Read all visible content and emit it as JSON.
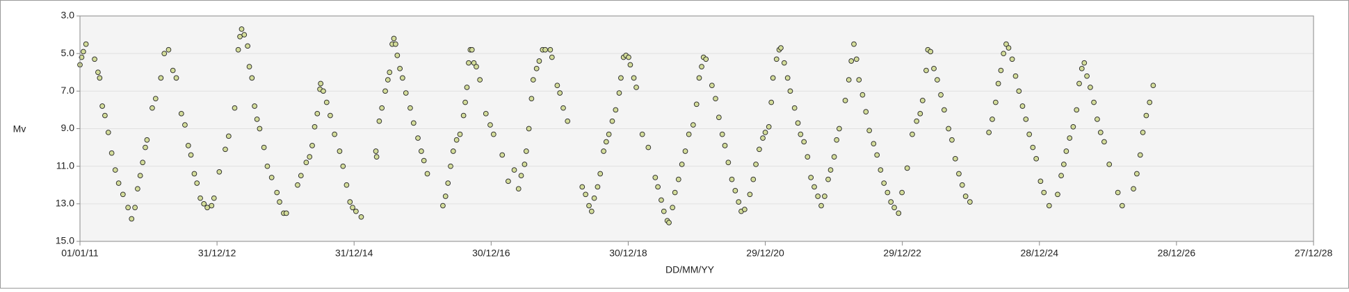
{
  "chart_data": {
    "type": "scatter",
    "x_label": "DD/MM/YY",
    "y_label": "Mv",
    "xlim": [
      40544,
      47114
    ],
    "xticks": [
      {
        "value": 40544,
        "label": "01/01/11"
      },
      {
        "value": 41274,
        "label": "31/12/12"
      },
      {
        "value": 42004,
        "label": "31/12/14"
      },
      {
        "value": 42734,
        "label": "30/12/16"
      },
      {
        "value": 43464,
        "label": "30/12/18"
      },
      {
        "value": 44194,
        "label": "29/12/20"
      },
      {
        "value": 44924,
        "label": "29/12/22"
      },
      {
        "value": 45654,
        "label": "28/12/24"
      },
      {
        "value": 46384,
        "label": "28/12/26"
      },
      {
        "value": 47114,
        "label": "27/12/28"
      }
    ],
    "ylim": [
      3,
      15
    ],
    "y_inverted": true,
    "yticks": [
      {
        "value": 3,
        "label": "3.0"
      },
      {
        "value": 5,
        "label": "5.0"
      },
      {
        "value": 7,
        "label": "7.0"
      },
      {
        "value": 9,
        "label": "9.0"
      },
      {
        "value": 11,
        "label": "11.0"
      },
      {
        "value": 13,
        "label": "13.0"
      },
      {
        "value": 15,
        "label": "15.0"
      }
    ],
    "grid": true,
    "color": "#d3dc9a",
    "x": [
      40544,
      40553,
      40562,
      40576,
      40622,
      40640,
      40649,
      40663,
      40677,
      40695,
      40713,
      40732,
      40750,
      40773,
      40800,
      40819,
      40837,
      40851,
      40865,
      40878,
      40892,
      40901,
      40929,
      40947,
      40975,
      40993,
      41016,
      41039,
      41057,
      41084,
      41103,
      41121,
      41135,
      41153,
      41167,
      41185,
      41204,
      41222,
      41245,
      41258,
      41286,
      41318,
      41336,
      41368,
      41387,
      41396,
      41405,
      41419,
      41437,
      41446,
      41460,
      41474,
      41487,
      41501,
      41524,
      41542,
      41565,
      41593,
      41607,
      41629,
      41643,
      41703,
      41721,
      41749,
      41767,
      41781,
      41794,
      41808,
      41822,
      41826,
      41840,
      41858,
      41877,
      41900,
      41927,
      41945,
      41964,
      41982,
      41996,
      42014,
      42042,
      42120,
      42124,
      42138,
      42152,
      42170,
      42184,
      42193,
      42207,
      42216,
      42225,
      42234,
      42248,
      42262,
      42280,
      42303,
      42321,
      42344,
      42362,
      42376,
      42394,
      42477,
      42491,
      42504,
      42518,
      42532,
      42550,
      42568,
      42587,
      42596,
      42605,
      42614,
      42623,
      42632,
      42642,
      42655,
      42674,
      42706,
      42729,
      42747,
      42793,
      42825,
      42857,
      42880,
      42894,
      42912,
      42921,
      42935,
      42949,
      42958,
      42976,
      42990,
      43008,
      43022,
      43049,
      43058,
      43086,
      43100,
      43118,
      43141,
      43219,
      43237,
      43255,
      43269,
      43283,
      43301,
      43315,
      43333,
      43347,
      43361,
      43379,
      43397,
      43416,
      43425,
      43439,
      43452,
      43466,
      43475,
      43494,
      43507,
      43539,
      43571,
      43608,
      43622,
      43640,
      43654,
      43672,
      43681,
      43700,
      43713,
      43732,
      43750,
      43768,
      43787,
      43810,
      43828,
      43842,
      43855,
      43865,
      43878,
      43910,
      43929,
      43947,
      43965,
      43979,
      43997,
      44016,
      44034,
      44052,
      44066,
      44084,
      44112,
      44130,
      44144,
      44162,
      44181,
      44194,
      44213,
      44226,
      44235,
      44254,
      44268,
      44277,
      44295,
      44313,
      44327,
      44350,
      44368,
      44382,
      44400,
      44419,
      44437,
      44455,
      44474,
      44492,
      44510,
      44529,
      44542,
      44561,
      44574,
      44588,
      44620,
      44639,
      44652,
      44666,
      44680,
      44693,
      44712,
      44730,
      44748,
      44771,
      44789,
      44808,
      44826,
      44845,
      44863,
      44881,
      44904,
      44922,
      44950,
      44977,
      45000,
      45019,
      45032,
      45051,
      45060,
      45074,
      45092,
      45110,
      45129,
      45147,
      45170,
      45188,
      45206,
      45225,
      45243,
      45261,
      45284,
      45385,
      45403,
      45421,
      45435,
      45449,
      45463,
      45477,
      45490,
      45509,
      45527,
      45545,
      45564,
      45582,
      45600,
      45619,
      45637,
      45660,
      45678,
      45706,
      45751,
      45770,
      45784,
      45797,
      45815,
      45834,
      45852,
      45866,
      45880,
      45893,
      45907,
      45925,
      45944,
      45962,
      45980,
      45999,
      46026,
      46072,
      46095,
      46155,
      46173,
      46191,
      46205,
      46223,
      46241,
      46260
    ],
    "values": [
      5.6,
      5.2,
      4.9,
      4.5,
      5.3,
      6.0,
      6.3,
      7.8,
      8.3,
      9.2,
      10.3,
      11.2,
      11.9,
      12.5,
      13.2,
      13.8,
      13.2,
      12.2,
      11.5,
      10.8,
      10.0,
      9.6,
      7.9,
      7.4,
      6.3,
      5.0,
      4.8,
      5.9,
      6.3,
      8.2,
      8.8,
      9.9,
      10.4,
      11.4,
      11.9,
      12.7,
      13.0,
      13.2,
      13.1,
      12.7,
      11.3,
      10.1,
      9.4,
      7.9,
      4.8,
      4.1,
      3.7,
      4.0,
      4.6,
      5.7,
      6.3,
      7.8,
      8.5,
      9.0,
      10.0,
      11.0,
      11.6,
      12.4,
      12.9,
      13.5,
      13.5,
      12.0,
      11.5,
      10.8,
      10.5,
      9.9,
      8.9,
      8.2,
      6.9,
      6.6,
      7.0,
      7.6,
      8.3,
      9.3,
      10.2,
      11.0,
      12.0,
      12.9,
      13.2,
      13.4,
      13.7,
      10.2,
      10.5,
      8.6,
      7.9,
      7.0,
      6.4,
      6.0,
      4.5,
      4.2,
      4.5,
      5.1,
      5.8,
      6.3,
      7.1,
      7.9,
      8.7,
      9.5,
      10.2,
      10.7,
      11.4,
      13.1,
      12.6,
      11.9,
      11.0,
      10.2,
      9.6,
      9.3,
      8.3,
      7.6,
      6.8,
      5.5,
      4.8,
      4.8,
      5.5,
      5.7,
      6.4,
      8.2,
      8.8,
      9.3,
      10.4,
      11.8,
      11.2,
      12.2,
      11.5,
      10.9,
      10.2,
      9.0,
      7.4,
      6.4,
      5.8,
      5.4,
      4.8,
      4.8,
      4.8,
      5.2,
      6.7,
      7.1,
      7.9,
      8.6,
      12.1,
      12.5,
      13.1,
      13.4,
      12.7,
      12.1,
      11.4,
      10.2,
      9.7,
      9.3,
      8.6,
      8.0,
      7.1,
      6.3,
      5.2,
      5.1,
      5.2,
      5.6,
      6.3,
      6.8,
      9.3,
      10.0,
      11.6,
      12.1,
      12.8,
      13.4,
      13.9,
      14.0,
      13.2,
      12.4,
      11.7,
      10.9,
      10.2,
      9.3,
      8.8,
      7.7,
      6.3,
      5.7,
      5.2,
      5.3,
      6.7,
      7.4,
      8.4,
      9.3,
      9.9,
      10.8,
      11.7,
      12.3,
      12.9,
      13.4,
      13.3,
      12.5,
      11.7,
      10.9,
      10.1,
      9.5,
      9.2,
      8.9,
      7.6,
      6.3,
      5.3,
      4.8,
      4.7,
      5.5,
      6.3,
      7.0,
      7.9,
      8.7,
      9.3,
      9.7,
      10.5,
      11.6,
      12.1,
      12.6,
      13.1,
      12.6,
      11.7,
      11.2,
      10.5,
      9.6,
      9.0,
      7.5,
      6.4,
      5.4,
      4.5,
      5.3,
      6.4,
      7.2,
      8.1,
      9.1,
      9.8,
      10.4,
      11.2,
      11.9,
      12.4,
      12.9,
      13.2,
      13.5,
      12.4,
      11.1,
      9.3,
      8.6,
      8.2,
      7.5,
      5.9,
      4.8,
      4.9,
      5.8,
      6.4,
      7.2,
      8.0,
      9.0,
      9.6,
      10.6,
      11.4,
      12.0,
      12.6,
      12.9,
      9.2,
      8.5,
      7.6,
      6.6,
      5.9,
      5.0,
      4.5,
      4.7,
      5.3,
      6.2,
      7.0,
      7.8,
      8.5,
      9.3,
      10.0,
      10.6,
      11.8,
      12.4,
      13.1,
      12.5,
      11.5,
      10.9,
      10.2,
      9.5,
      8.9,
      8.0,
      6.6,
      5.8,
      5.5,
      6.2,
      6.8,
      7.6,
      8.5,
      9.2,
      9.7,
      10.9,
      12.4,
      13.1,
      12.2,
      11.4,
      10.4,
      9.2,
      8.3,
      7.6,
      6.7
    ]
  }
}
